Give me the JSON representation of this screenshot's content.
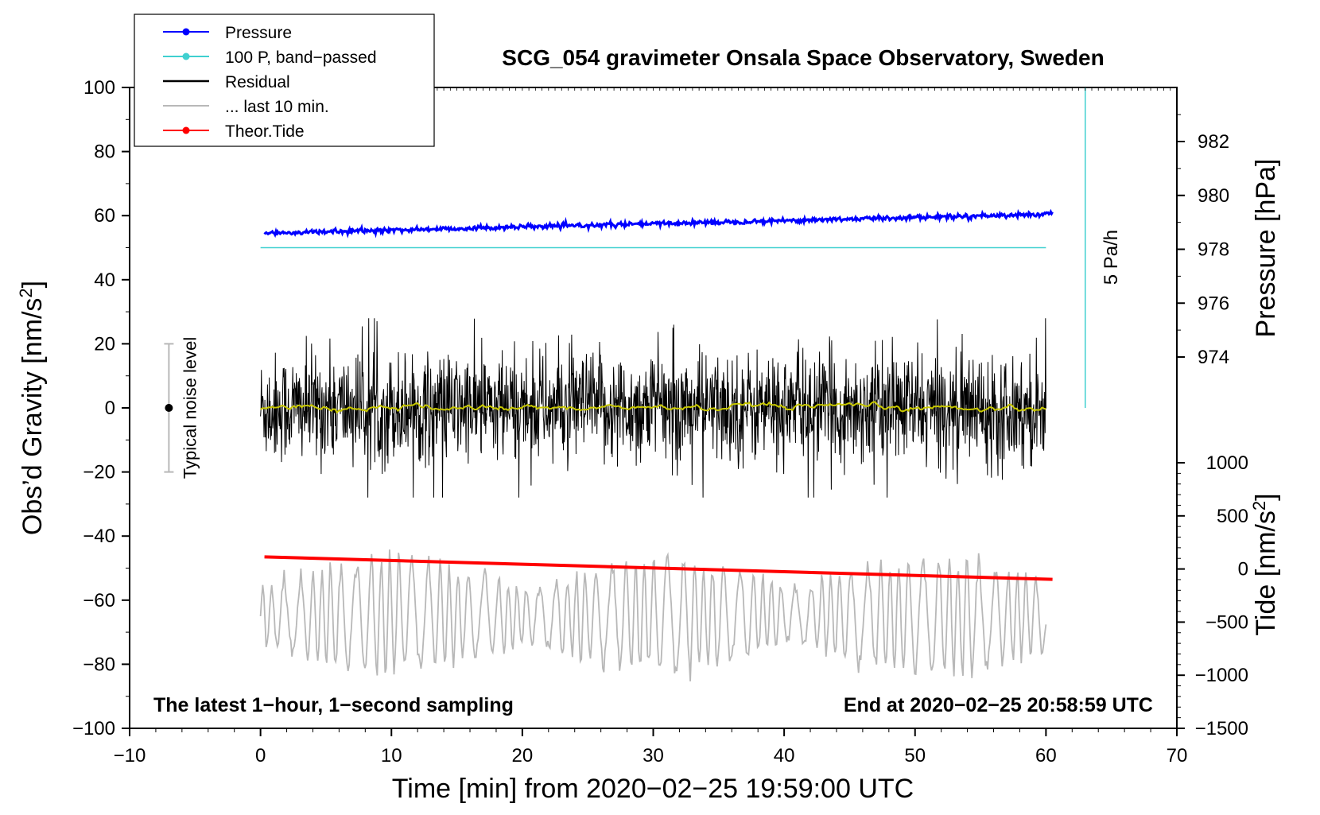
{
  "chart_data": {
    "type": "line",
    "title": "SCG_054 gravimeter Onsala Space Observatory, Sweden",
    "xlabel": "Time [min] from 2020−02−25 19:59:00 UTC",
    "ylabel_left_main": "Obs’d Gravity [nm/s",
    "ylabel_left_sup": "2",
    "ylabel_left_end": "]",
    "ylabel_right_pressure": "Pressure [hPa]",
    "ylabel_right_tide_main": "Tide [nm/s",
    "ylabel_right_tide_sup": "2",
    "ylabel_right_tide_end": "]",
    "xlim": [
      -10,
      70
    ],
    "ylim_left": [
      -100,
      100
    ],
    "ylim_pressure_ticks": [
      974,
      982
    ],
    "ylim_tide_ticks": [
      -1500,
      1000
    ],
    "x_ticks": [
      {
        "value": -10,
        "label": "−10"
      },
      {
        "value": 0,
        "label": "0"
      },
      {
        "value": 10,
        "label": "10"
      },
      {
        "value": 20,
        "label": "20"
      },
      {
        "value": 30,
        "label": "30"
      },
      {
        "value": 40,
        "label": "40"
      },
      {
        "value": 50,
        "label": "50"
      },
      {
        "value": 60,
        "label": "60"
      },
      {
        "value": 70,
        "label": "70"
      }
    ],
    "y_ticks_left": [
      {
        "value": 100,
        "label": "100"
      },
      {
        "value": 80,
        "label": "80"
      },
      {
        "value": 60,
        "label": "60"
      },
      {
        "value": 40,
        "label": "40"
      },
      {
        "value": 20,
        "label": "20"
      },
      {
        "value": 0,
        "label": "0"
      },
      {
        "value": -20,
        "label": "−20"
      },
      {
        "value": -40,
        "label": "−40"
      },
      {
        "value": -60,
        "label": "−60"
      },
      {
        "value": -80,
        "label": "−80"
      },
      {
        "value": -100,
        "label": "−100"
      }
    ],
    "pressure_ticks": [
      {
        "value": 982,
        "label": "982"
      },
      {
        "value": 980,
        "label": "980"
      },
      {
        "value": 978,
        "label": "978"
      },
      {
        "value": 976,
        "label": "976"
      },
      {
        "value": 974,
        "label": "974"
      }
    ],
    "tide_ticks": [
      {
        "value": 1000,
        "label": "1000"
      },
      {
        "value": 500,
        "label": "500"
      },
      {
        "value": 0,
        "label": "0"
      },
      {
        "value": -500,
        "label": "−500"
      },
      {
        "value": -1000,
        "label": "−1000"
      },
      {
        "value": -1500,
        "label": "−1500"
      }
    ],
    "series": [
      {
        "name": "Pressure",
        "color": "#0000ff",
        "start_y": 54.5,
        "end_y": 60.5,
        "noise": 0.35,
        "x_start": 0.3,
        "x_end": 60.5
      },
      {
        "name": "100 P, band−passed",
        "color": "#40d0d0",
        "y": 50,
        "x_start": 0.0,
        "x_end": 60.0
      },
      {
        "name": "Residual",
        "color": "#000000",
        "center_y": 0,
        "amplitude": 28,
        "x_start": 0.0,
        "x_end": 60.0
      },
      {
        "name": "... last 10 min.",
        "color": "#b8b8b8",
        "center_y": -65,
        "amplitude": 20,
        "x_start": 0.0,
        "x_end": 60.0
      },
      {
        "name": "Theor.Tide",
        "color": "#ff0000",
        "start_y": -46.5,
        "end_y": -53.5,
        "x_start": 0.3,
        "x_end": 60.5
      },
      {
        "name": "Residual smoothed",
        "color": "#c8c800",
        "center_y": 0,
        "x_start": 0.0,
        "x_end": 60.0
      }
    ],
    "legend": [
      {
        "label": "Pressure",
        "color": "#0000ff",
        "marker": true
      },
      {
        "label": "100 P, band−passed",
        "color": "#40d0d0",
        "marker": true
      },
      {
        "label": "Residual",
        "color": "#000000",
        "marker": false
      },
      {
        "label": "... last 10 min.",
        "color": "#b8b8b8",
        "marker": false
      },
      {
        "label": "Theor.Tide",
        "color": "#ff0000",
        "marker": true
      }
    ],
    "noise_indicator": {
      "label": "Typical noise level",
      "x": -7,
      "center": 0,
      "low": -20,
      "high": 20
    },
    "rate_indicator": {
      "label": "5 Pa/h",
      "x": 63,
      "y_bottom": 0,
      "y_top": 100
    },
    "note_left": "The latest 1−hour, 1−second sampling",
    "note_right": "End at 2020−02−25 20:58:59 UTC"
  }
}
